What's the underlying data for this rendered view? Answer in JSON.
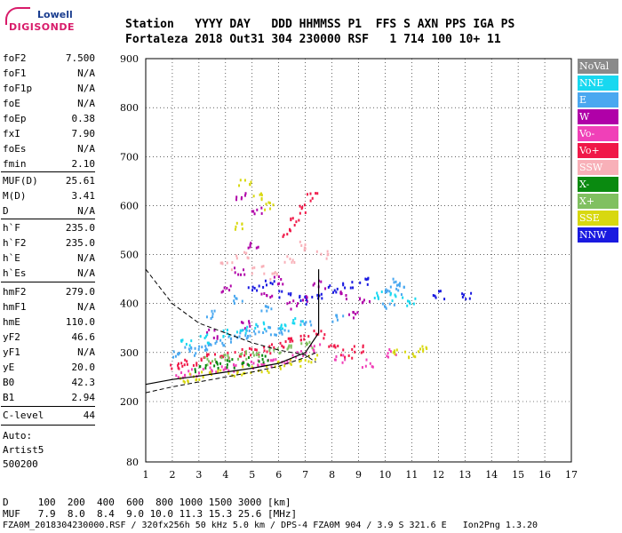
{
  "logo": {
    "line1": "Lowell",
    "line2": "DIGISONDE"
  },
  "header": {
    "row1": "Station   YYYY DAY   DDD HHMMSS P1  FFS S AXN PPS IGA PS",
    "row2": "Fortaleza 2018 Out31 304 230000 RSF   1 714 100 10+ 11"
  },
  "parameters": [
    {
      "label": "foF2",
      "value": "7.500"
    },
    {
      "label": "foF1",
      "value": "N/A"
    },
    {
      "label": "foF1p",
      "value": "N/A"
    },
    {
      "label": "foE",
      "value": "N/A"
    },
    {
      "label": "foEp",
      "value": "0.38"
    },
    {
      "label": "fxI",
      "value": "7.90"
    },
    {
      "label": "foEs",
      "value": "N/A"
    },
    {
      "label": "fmin",
      "value": "2.10"
    },
    {
      "label": "MUF(D)",
      "value": "25.61"
    },
    {
      "label": "M(D)",
      "value": "3.41"
    },
    {
      "label": "D",
      "value": "N/A"
    },
    {
      "label": "h`F",
      "value": "235.0"
    },
    {
      "label": "h`F2",
      "value": "235.0"
    },
    {
      "label": "h`E",
      "value": "N/A"
    },
    {
      "label": "h`Es",
      "value": "N/A"
    },
    {
      "label": "hmF2",
      "value": "279.0"
    },
    {
      "label": "hmF1",
      "value": "N/A"
    },
    {
      "label": "hmE",
      "value": "110.0"
    },
    {
      "label": "yF2",
      "value": "46.6"
    },
    {
      "label": "yF1",
      "value": "N/A"
    },
    {
      "label": "yE",
      "value": "20.0"
    },
    {
      "label": "B0",
      "value": "42.3"
    },
    {
      "label": "B1",
      "value": "2.94"
    },
    {
      "label": "C-level",
      "value": "44"
    }
  ],
  "autoscale": {
    "line1": "Auto:",
    "line2": "Artist5",
    "line3": "500200"
  },
  "footer": {
    "d_row": "D     100  200  400  600  800 1000 1500 3000 [km]",
    "muf_row": "MUF   7.9  8.0  8.4  9.0 10.0 11.3 15.3 25.6 [MHz]",
    "file_row": "FZA0M_2018304230000.RSF / 320fx256h 50 kHz 5.0 km / DPS-4 FZA0M 904 / 3.9 S 321.6 E   Ion2Png 1.3.20"
  },
  "legend": [
    {
      "label": "NoVal",
      "color": "#8a8a8a"
    },
    {
      "label": "NNE",
      "color": "#18d8f0"
    },
    {
      "label": "E",
      "color": "#4aa8f0"
    },
    {
      "label": "W",
      "color": "#b000a8"
    },
    {
      "label": "Vo-",
      "color": "#f040b8"
    },
    {
      "label": "Vo+",
      "color": "#f01848"
    },
    {
      "label": "SSW",
      "color": "#f8b0b8"
    },
    {
      "label": "X-",
      "color": "#0a8a10"
    },
    {
      "label": "X+",
      "color": "#80c060"
    },
    {
      "label": "SSE",
      "color": "#d8d810"
    },
    {
      "label": "NNW",
      "color": "#1a1ae0"
    }
  ],
  "chart_data": {
    "type": "scatter",
    "xlim": [
      1,
      17
    ],
    "ylim": [
      80,
      900
    ],
    "x_ticks": [
      "1",
      "2",
      "3",
      "4",
      "5",
      "6",
      "7",
      "8",
      "9",
      "10",
      "11",
      "12",
      "13",
      "14",
      "15",
      "16",
      "17"
    ],
    "y_ticks": [
      "900",
      "800",
      "700",
      "600",
      "500",
      "400",
      "300",
      "200",
      "80"
    ],
    "grid": true,
    "legend_position": "right",
    "series": [
      {
        "name": "E",
        "points": [
          [
            2.2,
            300
          ],
          [
            2.6,
            305
          ],
          [
            3,
            310
          ],
          [
            3.4,
            315
          ],
          [
            3.8,
            320
          ],
          [
            4.2,
            330
          ],
          [
            4.6,
            340
          ],
          [
            5,
            345
          ],
          [
            5.4,
            350
          ],
          [
            5.8,
            345
          ],
          [
            6.2,
            340
          ],
          [
            3.5,
            380
          ],
          [
            4.5,
            410
          ],
          [
            5.5,
            395
          ],
          [
            10,
            435
          ],
          [
            10.3,
            445
          ],
          [
            10.6,
            430
          ],
          [
            10.1,
            400
          ],
          [
            7,
            360
          ],
          [
            8.2,
            370
          ]
        ]
      },
      {
        "name": "W",
        "points": [
          [
            4,
            430
          ],
          [
            4.5,
            470
          ],
          [
            5,
            520
          ],
          [
            5.5,
            420
          ],
          [
            6,
            450
          ],
          [
            6.5,
            400
          ],
          [
            7,
            410
          ],
          [
            7.5,
            440
          ],
          [
            3.5,
            340
          ],
          [
            4.8,
            360
          ],
          [
            8.5,
            420
          ],
          [
            9.2,
            410
          ],
          [
            8.8,
            380
          ],
          [
            5.2,
            590
          ],
          [
            4.6,
            620
          ]
        ]
      },
      {
        "name": "Vo+",
        "points": [
          [
            2,
            275
          ],
          [
            2.5,
            280
          ],
          [
            3,
            285
          ],
          [
            3.5,
            290
          ],
          [
            4,
            295
          ],
          [
            4.5,
            300
          ],
          [
            5,
            305
          ],
          [
            5.5,
            310
          ],
          [
            6,
            318
          ],
          [
            6.5,
            325
          ],
          [
            7,
            330
          ],
          [
            7.5,
            340
          ],
          [
            8,
            320
          ],
          [
            8.5,
            300
          ],
          [
            9,
            310
          ],
          [
            6.3,
            545
          ],
          [
            6.6,
            570
          ],
          [
            6.9,
            595
          ],
          [
            7.2,
            620
          ]
        ]
      },
      {
        "name": "Vo-",
        "points": [
          [
            2.3,
            260
          ],
          [
            2.8,
            262
          ],
          [
            3.3,
            265
          ],
          [
            3.8,
            268
          ],
          [
            4.3,
            272
          ],
          [
            4.8,
            275
          ],
          [
            5.3,
            278
          ],
          [
            5.8,
            282
          ],
          [
            6.3,
            290
          ],
          [
            6.8,
            300
          ],
          [
            7.3,
            310
          ],
          [
            8.3,
            290
          ],
          [
            9.3,
            280
          ],
          [
            10.2,
            300
          ]
        ]
      },
      {
        "name": "SSE",
        "points": [
          [
            2.4,
            250
          ],
          [
            3,
            255
          ],
          [
            3.6,
            258
          ],
          [
            4.2,
            262
          ],
          [
            4.8,
            265
          ],
          [
            5.4,
            270
          ],
          [
            6,
            275
          ],
          [
            6.6,
            280
          ],
          [
            7.2,
            290
          ],
          [
            4.7,
            650
          ],
          [
            5.2,
            620
          ],
          [
            4.4,
            560
          ],
          [
            5.6,
            600
          ],
          [
            10.5,
            300
          ],
          [
            11,
            300
          ],
          [
            11.3,
            310
          ]
        ]
      },
      {
        "name": "NNE",
        "points": [
          [
            2.5,
            320
          ],
          [
            3.2,
            330
          ],
          [
            3.9,
            340
          ],
          [
            4.6,
            350
          ],
          [
            5.3,
            355
          ],
          [
            6,
            360
          ],
          [
            6.7,
            365
          ],
          [
            9.8,
            420
          ],
          [
            10.4,
            415
          ],
          [
            11,
            405
          ]
        ]
      },
      {
        "name": "SSW",
        "points": [
          [
            4,
            480
          ],
          [
            4.6,
            500
          ],
          [
            5.2,
            470
          ],
          [
            5.8,
            460
          ],
          [
            6.4,
            490
          ],
          [
            7,
            520
          ],
          [
            7.6,
            500
          ]
        ]
      },
      {
        "name": "X+",
        "points": [
          [
            3.4,
            285
          ],
          [
            4,
            292
          ],
          [
            4.6,
            298
          ],
          [
            5.2,
            300
          ],
          [
            5.8,
            305
          ],
          [
            6.4,
            310
          ],
          [
            7,
            320
          ]
        ]
      },
      {
        "name": "X-",
        "points": [
          [
            3,
            270
          ],
          [
            3.6,
            276
          ],
          [
            4.2,
            280
          ],
          [
            4.8,
            284
          ],
          [
            5.4,
            288
          ]
        ]
      },
      {
        "name": "NNW",
        "points": [
          [
            5,
            430
          ],
          [
            5.6,
            440
          ],
          [
            6.2,
            420
          ],
          [
            6.8,
            410
          ],
          [
            7.4,
            420
          ],
          [
            8,
            430
          ],
          [
            8.6,
            440
          ],
          [
            9.2,
            450
          ],
          [
            12,
            420
          ],
          [
            13,
            415
          ]
        ]
      }
    ],
    "profile_curve": [
      [
        1,
        235
      ],
      [
        2,
        245
      ],
      [
        3,
        252
      ],
      [
        4,
        260
      ],
      [
        5,
        268
      ],
      [
        6,
        278
      ],
      [
        7,
        300
      ],
      [
        7.5,
        340
      ],
      [
        7.5,
        470
      ]
    ],
    "d_curve_upper": [
      [
        1,
        470
      ],
      [
        2,
        400
      ],
      [
        3,
        360
      ],
      [
        4,
        340
      ],
      [
        5,
        320
      ],
      [
        6,
        305
      ],
      [
        7,
        295
      ],
      [
        7.4,
        280
      ]
    ],
    "d_curve_lower": [
      [
        1,
        218
      ],
      [
        2,
        230
      ],
      [
        3,
        240
      ],
      [
        4,
        250
      ],
      [
        5,
        260
      ],
      [
        6,
        272
      ],
      [
        7,
        290
      ],
      [
        7.4,
        300
      ]
    ]
  }
}
